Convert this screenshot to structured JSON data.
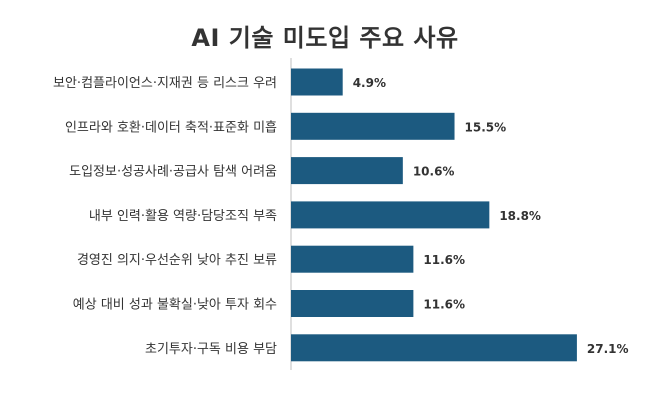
{
  "chart_data": {
    "type": "bar",
    "orientation": "horizontal",
    "title": "AI 기술 미도입 주요 사유",
    "categories": [
      "보안·컴플라이언스·지재권 등 리스크 우려",
      "인프라와 호환·데이터 축적·표준화 미흡",
      "도입정보·성공사례·공급사 탐색 어려움",
      "내부 인력·활용 역량·담당조직 부족",
      "경영진 의지·우선순위 낮아 추진 보류",
      "예상 대비 성과 불확실·낮아 투자 회수",
      "초기투자·구독 비용 부담"
    ],
    "values": [
      4.9,
      15.5,
      10.6,
      18.8,
      11.6,
      11.6,
      27.1
    ],
    "value_labels": [
      "4.9%",
      "15.5%",
      "10.6%",
      "18.8%",
      "11.6%",
      "11.6%",
      "27.1%"
    ],
    "xlim": [
      0,
      30
    ],
    "grid": false,
    "bar_color": "#1c5a80"
  }
}
